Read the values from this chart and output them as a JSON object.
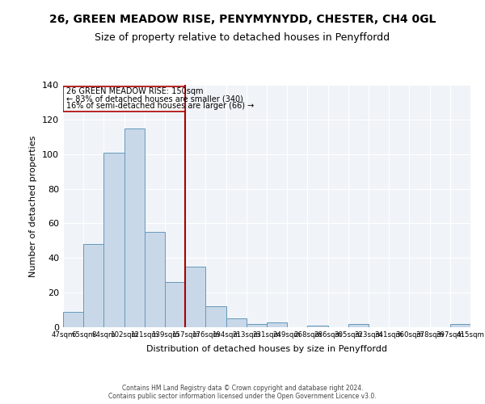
{
  "title": "26, GREEN MEADOW RISE, PENYMYNYDD, CHESTER, CH4 0GL",
  "subtitle": "Size of property relative to detached houses in Penyffordd",
  "xlabel": "Distribution of detached houses by size in Penyffordd",
  "ylabel": "Number of detached properties",
  "bin_labels": [
    "47sqm",
    "65sqm",
    "84sqm",
    "102sqm",
    "121sqm",
    "139sqm",
    "157sqm",
    "176sqm",
    "194sqm",
    "213sqm",
    "231sqm",
    "249sqm",
    "268sqm",
    "286sqm",
    "305sqm",
    "323sqm",
    "341sqm",
    "360sqm",
    "378sqm",
    "397sqm",
    "415sqm"
  ],
  "bar_values": [
    9,
    48,
    101,
    115,
    55,
    26,
    35,
    12,
    5,
    2,
    3,
    0,
    1,
    0,
    2,
    0,
    0,
    0,
    0,
    2
  ],
  "bar_color": "#c8d8e8",
  "bar_edge_color": "#6699bb",
  "red_line_index": 6,
  "annotation_line1": "26 GREEN MEADOW RISE: 150sqm",
  "annotation_line2": "← 83% of detached houses are smaller (340)",
  "annotation_line3": "16% of semi-detached houses are larger (66) →",
  "red_line_color": "#aa0000",
  "ylim": [
    0,
    140
  ],
  "yticks": [
    0,
    20,
    40,
    60,
    80,
    100,
    120,
    140
  ],
  "background_color": "#f0f4f8",
  "footer_line1": "Contains HM Land Registry data © Crown copyright and database right 2024.",
  "footer_line2": "Contains public sector information licensed under the Open Government Licence v3.0."
}
